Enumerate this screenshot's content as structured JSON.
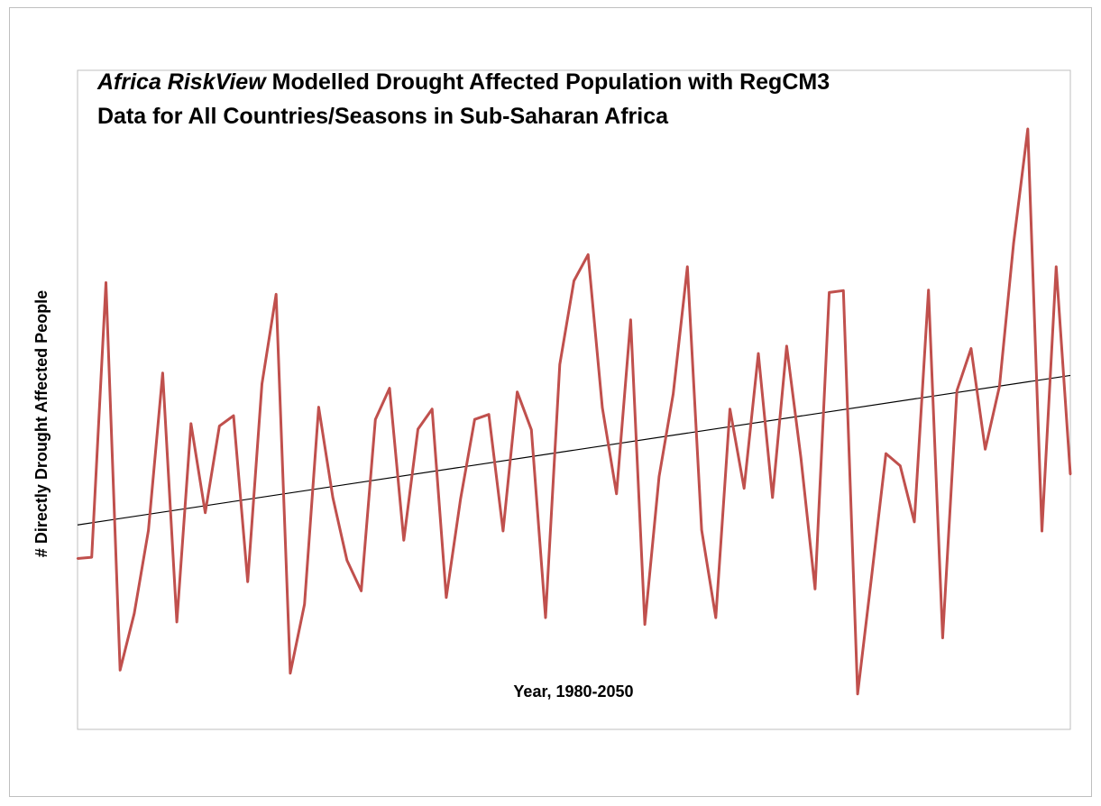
{
  "chart_data": {
    "type": "line",
    "title": {
      "italic_part": "Africa RiskView",
      "line1_rest": " Modelled Drought Affected Population with RegCM3",
      "line2": "Data for All Countries/Seasons in Sub-Saharan Africa"
    },
    "xlabel": "Year, 1980-2050",
    "ylabel": "# Directly Drought  Affected People",
    "xlim": [
      1980,
      2050
    ],
    "grid": false,
    "legend": "none",
    "colors": {
      "series": "#c0504d",
      "trend": "#000000",
      "frame": "#bfbfbf"
    },
    "series": [
      {
        "x": [
          1980,
          1981,
          1982,
          1983,
          1984,
          1985,
          1986,
          1987,
          1988,
          1989,
          1990,
          1991,
          1992,
          1993,
          1994,
          1995,
          1996,
          1997,
          1998,
          1999,
          2000,
          2001,
          2002,
          2003,
          2004,
          2005,
          2006,
          2007,
          2008,
          2009,
          2010,
          2011,
          2012,
          2013,
          2014,
          2015,
          2016,
          2017,
          2018,
          2019,
          2020,
          2021,
          2022,
          2023,
          2024,
          2025,
          2026,
          2027,
          2028,
          2029,
          2030,
          2031,
          2032,
          2033,
          2034,
          2035,
          2036,
          2037,
          2038,
          2039,
          2040,
          2041,
          2042,
          2043,
          2044,
          2045,
          2046,
          2047,
          2048,
          2049,
          2050
        ],
        "values": [
          0.28,
          0.282,
          0.732,
          0.097,
          0.19,
          0.326,
          0.584,
          0.176,
          0.501,
          0.355,
          0.497,
          0.514,
          0.242,
          0.566,
          0.713,
          0.092,
          0.205,
          0.528,
          0.38,
          0.277,
          0.227,
          0.508,
          0.559,
          0.31,
          0.492,
          0.525,
          0.216,
          0.377,
          0.508,
          0.516,
          0.325,
          0.553,
          0.491,
          0.183,
          0.598,
          0.735,
          0.778,
          0.527,
          0.386,
          0.671,
          0.172,
          0.414,
          0.55,
          0.758,
          0.327,
          0.183,
          0.525,
          0.395,
          0.616,
          0.38,
          0.628,
          0.445,
          0.23,
          0.716,
          0.719,
          0.058,
          0.253,
          0.452,
          0.432,
          0.34,
          0.72,
          0.15,
          0.555,
          0.624,
          0.459,
          0.562,
          0.797,
          0.984,
          0.325,
          0.758,
          0.418
        ]
      }
    ],
    "trend": {
      "start": 0.335,
      "end": 0.58
    },
    "ylim": [
      0,
      1.08
    ]
  }
}
